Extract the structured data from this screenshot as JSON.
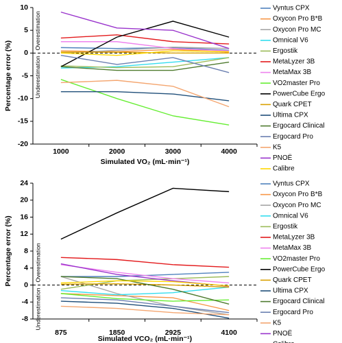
{
  "chart_data": [
    {
      "type": "line",
      "ylabel": "Percentage error (%)",
      "xlabel": "Simulated VO₂ (mL·min⁻¹)",
      "annotations": [
        "Overestimation",
        "Underestimation"
      ],
      "categories": [
        "1000",
        "2000",
        "3000",
        "4000"
      ],
      "ylim": [
        -20,
        10
      ],
      "yticks": [
        -20,
        -15,
        -10,
        -5,
        0,
        5,
        10
      ],
      "series": [
        {
          "name": "Vyntus CPX",
          "color": "#4f81bd",
          "values": [
            1.2,
            1,
            1.2,
            0.6
          ]
        },
        {
          "name": "Oxycon Pro B*B",
          "color": "#f79646",
          "values": [
            0.5,
            0.3,
            0.8,
            0.2
          ]
        },
        {
          "name": "Oxycon Pro MC",
          "color": "#a5a5a5",
          "values": [
            0,
            0.6,
            1.3,
            1
          ]
        },
        {
          "name": "Omnical V6",
          "color": "#33ddee",
          "values": [
            -3.3,
            -3,
            -2,
            -1
          ]
        },
        {
          "name": "Ergostik",
          "color": "#9bbb59",
          "values": [
            -2.8,
            -3.2,
            -3,
            -1
          ]
        },
        {
          "name": "MetaLyzer 3B",
          "color": "#e31a1c",
          "values": [
            3.3,
            4,
            2.5,
            2
          ]
        },
        {
          "name": "MetaMax 3B",
          "color": "#ee82ee",
          "values": [
            2.5,
            2.5,
            1,
            0.5
          ]
        },
        {
          "name": "VO2master Pro",
          "color": "#66ee33",
          "values": [
            -5.8,
            -10,
            -13.8,
            -15.8
          ]
        },
        {
          "name": "PowerCube Ergo",
          "color": "#000000",
          "values": [
            -3,
            3.5,
            7,
            3.5
          ]
        },
        {
          "name": "Quark CPET",
          "color": "#d9a000",
          "values": [
            0.2,
            0.2,
            0,
            0
          ]
        },
        {
          "name": "Ultima CPX",
          "color": "#1f4e79",
          "values": [
            -8.5,
            -8.5,
            -9,
            -10.5
          ]
        },
        {
          "name": "Ergocard Clinical",
          "color": "#4e7a2e",
          "values": [
            -3,
            -3.8,
            -3.8,
            -2
          ]
        },
        {
          "name": "Ergocard Pro",
          "color": "#6a7fb0",
          "values": [
            -0.5,
            -2.5,
            -1,
            -4.3
          ]
        },
        {
          "name": "K5",
          "color": "#f4a670",
          "values": [
            -6.5,
            -6,
            -7.3,
            -11.8
          ]
        },
        {
          "name": "PNOË",
          "color": "#9933cc",
          "values": [
            9,
            5.5,
            5,
            1
          ]
        },
        {
          "name": "Calibre",
          "color": "#ffd700",
          "values": [
            0,
            -0.5,
            0.5,
            0.3
          ]
        }
      ]
    },
    {
      "type": "line",
      "ylabel": "Percentage error (%)",
      "xlabel": "Simulated VCO₂ (mL·min⁻¹)",
      "annotations": [
        "Overestimation",
        "Underestimation"
      ],
      "categories": [
        "875",
        "1850",
        "2925",
        "4100"
      ],
      "ylim": [
        -8,
        24
      ],
      "yticks": [
        -8,
        -4,
        0,
        4,
        8,
        12,
        16,
        20,
        24
      ],
      "series": [
        {
          "name": "Vyntus CPX",
          "color": "#4f81bd",
          "values": [
            2,
            2,
            2.5,
            3
          ]
        },
        {
          "name": "Oxycon Pro B*B",
          "color": "#f79646",
          "values": [
            -2,
            -2.5,
            -3,
            -6
          ]
        },
        {
          "name": "Oxycon Pro MC",
          "color": "#a5a5a5",
          "values": [
            2,
            -2,
            -5,
            -7
          ]
        },
        {
          "name": "Omnical V6",
          "color": "#33ddee",
          "values": [
            -1.3,
            -2.3,
            -1.8,
            -0.5
          ]
        },
        {
          "name": "Ergostik",
          "color": "#9bbb59",
          "values": [
            -1,
            1,
            1.5,
            2
          ]
        },
        {
          "name": "MetaLyzer 3B",
          "color": "#e31a1c",
          "values": [
            6.5,
            6,
            4.8,
            4.2
          ]
        },
        {
          "name": "MetaMax 3B",
          "color": "#ee82ee",
          "values": [
            4.8,
            3,
            1.5,
            0.5
          ]
        },
        {
          "name": "VO2master Pro",
          "color": "#66ee33",
          "values": [
            -2,
            -3.2,
            -3.8,
            -3.5
          ]
        },
        {
          "name": "PowerCube Ergo",
          "color": "#000000",
          "values": [
            10.8,
            17,
            22.8,
            22
          ]
        },
        {
          "name": "Quark CPET",
          "color": "#d9a000",
          "values": [
            0.2,
            0.3,
            0,
            -0.5
          ]
        },
        {
          "name": "Ultima CPX",
          "color": "#1f4e79",
          "values": [
            -3.8,
            -4.3,
            -5.5,
            -7.8
          ]
        },
        {
          "name": "Ergocard Clinical",
          "color": "#4e7a2e",
          "values": [
            2,
            1.5,
            -1,
            -4.5
          ]
        },
        {
          "name": "Ergocard Pro",
          "color": "#6a7fb0",
          "values": [
            -3,
            -3.5,
            -5,
            -6.5
          ]
        },
        {
          "name": "K5",
          "color": "#f4a670",
          "values": [
            -5,
            -5.5,
            -6.5,
            -7
          ]
        },
        {
          "name": "PNOË",
          "color": "#9933cc",
          "values": [
            5,
            2.5,
            1,
            -0.3
          ]
        },
        {
          "name": "Calibre",
          "color": "#ffd700",
          "values": [
            0.5,
            1,
            0.8,
            -0.2
          ]
        }
      ]
    }
  ]
}
